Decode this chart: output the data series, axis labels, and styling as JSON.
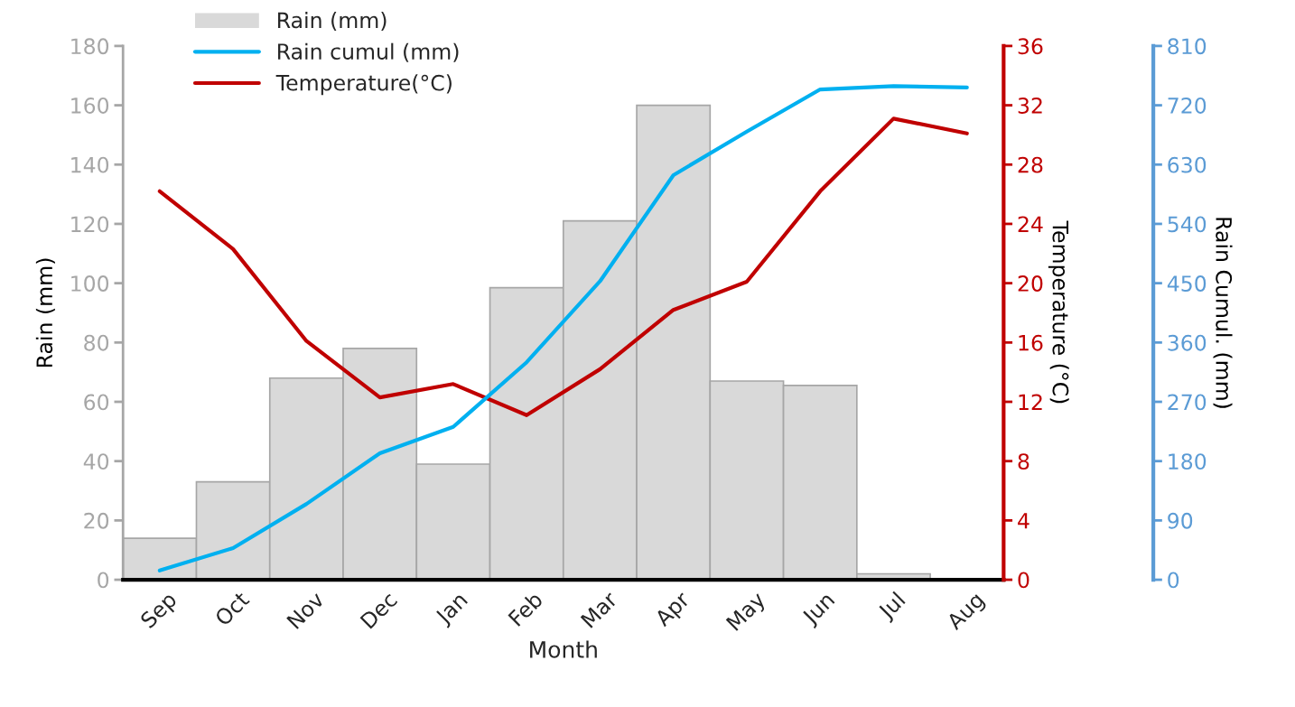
{
  "chart_data": {
    "type": "bar",
    "xlabel": "Month",
    "ylabel": "Rain (mm)",
    "y2label": "Temperature (°C)",
    "y3label": "Rain Cumul. (mm)",
    "categories": [
      "Sep",
      "Oct",
      "Nov",
      "Dec",
      "Jan",
      "Feb",
      "Mar",
      "Apr",
      "May",
      "Jun",
      "Jul",
      "Aug"
    ],
    "series": [
      {
        "name": "Rain (mm)",
        "type": "bar",
        "color": "#d9d9d9",
        "values": [
          14,
          33,
          68,
          78,
          39,
          98.5,
          121,
          160,
          67,
          65.5,
          2,
          0
        ]
      },
      {
        "name": "Rain cumul (mm)",
        "type": "line",
        "axis": "y3",
        "color": "#00b0f0",
        "values": [
          14,
          48,
          115,
          192,
          232,
          330,
          453,
          614,
          680,
          744,
          749,
          747
        ]
      },
      {
        "name": "Temperature(°C)",
        "type": "line",
        "axis": "y2",
        "color": "#c00000",
        "values": [
          26.2,
          22.3,
          16.1,
          12.3,
          13.2,
          11.1,
          14.2,
          18.2,
          20.1,
          26.2,
          31.1,
          30.1
        ]
      }
    ],
    "ylim": [
      0,
      180
    ],
    "yticks": [
      0,
      20,
      40,
      60,
      80,
      100,
      120,
      140,
      160,
      180
    ],
    "y2lim": [
      0,
      36
    ],
    "y2ticks": [
      0,
      4,
      8,
      12,
      16,
      20,
      24,
      28,
      32,
      36
    ],
    "y3lim": [
      0,
      810
    ],
    "y3ticks": [
      0,
      90,
      180,
      270,
      360,
      450,
      540,
      630,
      720,
      810
    ],
    "grid": false,
    "legend": "top left",
    "marker": "none",
    "line_style": "solid"
  }
}
